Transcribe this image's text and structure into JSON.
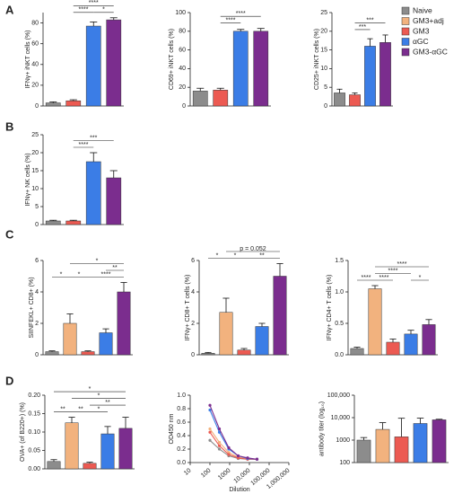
{
  "panels": [
    "A",
    "B",
    "C",
    "D"
  ],
  "legend": [
    {
      "name": "Naive",
      "color": "#8c8c8c"
    },
    {
      "name": "GM3+adj",
      "color": "#f2b27e"
    },
    {
      "name": "GM3",
      "color": "#ec5a52"
    },
    {
      "name": "αGC",
      "color": "#3b7de6"
    },
    {
      "name": "GM3-αGC",
      "color": "#7b2d8e"
    }
  ],
  "chart_data": [
    {
      "type": "bar",
      "ylabel": "IFNγ+ iNKT cells (%)",
      "colors": [
        "#8c8c8c",
        "#ec5a52",
        "#3b7de6",
        "#7b2d8e"
      ],
      "values": [
        3,
        5,
        77,
        83
      ],
      "errors": [
        1,
        1,
        4,
        2
      ],
      "ylim": [
        0,
        90
      ],
      "yticks": [
        0,
        20,
        40,
        60,
        80
      ],
      "annotations": [
        {
          "text": "****",
          "from": 1,
          "to": 2
        },
        {
          "text": "*",
          "from": 2,
          "to": 3
        },
        {
          "text": "****",
          "from": 1,
          "to": 3
        }
      ]
    },
    {
      "type": "bar",
      "ylabel": "CD69+ iNKT cells (%)",
      "colors": [
        "#8c8c8c",
        "#ec5a52",
        "#3b7de6",
        "#7b2d8e"
      ],
      "values": [
        16,
        17,
        80,
        80
      ],
      "errors": [
        3,
        2,
        2,
        3
      ],
      "ylim": [
        0,
        100
      ],
      "yticks": [
        0,
        20,
        40,
        60,
        80,
        100
      ],
      "annotations": [
        {
          "text": "****",
          "from": 1,
          "to": 2
        },
        {
          "text": "****",
          "from": 1,
          "to": 3
        }
      ]
    },
    {
      "type": "bar",
      "ylabel": "CD25+ iNKT cells (%)",
      "colors": [
        "#8c8c8c",
        "#ec5a52",
        "#3b7de6",
        "#7b2d8e"
      ],
      "values": [
        3.5,
        3,
        16,
        17
      ],
      "errors": [
        1,
        0.5,
        2,
        2
      ],
      "ylim": [
        0,
        25
      ],
      "yticks": [
        0,
        5,
        10,
        15,
        20,
        25
      ],
      "annotations": [
        {
          "text": "***",
          "from": 1,
          "to": 2
        },
        {
          "text": "***",
          "from": 1,
          "to": 3
        }
      ]
    },
    {
      "type": "bar",
      "ylabel": "IFNγ+ NK cells (%)",
      "colors": [
        "#8c8c8c",
        "#ec5a52",
        "#3b7de6",
        "#7b2d8e"
      ],
      "values": [
        1,
        1,
        17.5,
        13
      ],
      "errors": [
        0.2,
        0.2,
        2.5,
        2
      ],
      "ylim": [
        0,
        25
      ],
      "yticks": [
        0,
        5,
        10,
        15,
        20,
        25
      ],
      "annotations": [
        {
          "text": "****",
          "from": 1,
          "to": 2
        },
        {
          "text": "***",
          "from": 1,
          "to": 3
        }
      ]
    },
    {
      "type": "bar",
      "ylabel": "SIINFEKL+ CD8+ (%)",
      "colors": [
        "#8c8c8c",
        "#f2b27e",
        "#ec5a52",
        "#3b7de6",
        "#7b2d8e"
      ],
      "values": [
        0.2,
        2,
        0.2,
        1.4,
        4
      ],
      "errors": [
        0.05,
        0.6,
        0.05,
        0.25,
        0.6
      ],
      "ylim": [
        0,
        6
      ],
      "yticks": [
        0,
        2,
        4,
        6
      ],
      "annotations": [
        {
          "text": "*",
          "from": 0,
          "to": 1
        },
        {
          "text": "*",
          "from": 1,
          "to": 2
        },
        {
          "text": "****",
          "from": 2,
          "to": 4
        },
        {
          "text": "**",
          "from": 3,
          "to": 4
        },
        {
          "text": "*",
          "from": 1,
          "to": 4
        }
      ]
    },
    {
      "type": "bar",
      "ylabel": "IFNγ+ CD8+ T cells (%)",
      "colors": [
        "#8c8c8c",
        "#f2b27e",
        "#ec5a52",
        "#3b7de6",
        "#7b2d8e"
      ],
      "values": [
        0.1,
        2.7,
        0.3,
        1.8,
        5
      ],
      "errors": [
        0.05,
        0.9,
        0.1,
        0.2,
        0.8
      ],
      "ylim": [
        0,
        6
      ],
      "yticks": [
        0,
        2,
        4,
        6
      ],
      "annotations": [
        {
          "text": "*",
          "from": 0,
          "to": 1
        },
        {
          "text": "*",
          "from": 1,
          "to": 2
        },
        {
          "text": "**",
          "from": 2,
          "to": 4
        },
        {
          "text": "p = 0.052",
          "from": 1,
          "to": 4
        }
      ]
    },
    {
      "type": "bar",
      "ylabel": "IFNγ+ CD4+ T cells (%)",
      "colors": [
        "#8c8c8c",
        "#f2b27e",
        "#ec5a52",
        "#3b7de6",
        "#7b2d8e"
      ],
      "values": [
        0.1,
        1.05,
        0.2,
        0.33,
        0.48
      ],
      "errors": [
        0.02,
        0.05,
        0.05,
        0.06,
        0.08
      ],
      "ylim": [
        0,
        1.5
      ],
      "yticks": [
        {
          "value": 0,
          "label": "0.0"
        },
        0.5,
        {
          "value": 1,
          "label": "1.0"
        },
        1.5
      ],
      "annotations": [
        {
          "text": "****",
          "from": 0,
          "to": 1
        },
        {
          "text": "****",
          "from": 1,
          "to": 2
        },
        {
          "text": "*",
          "from": 3,
          "to": 4
        },
        {
          "text": "****",
          "from": 1,
          "to": 3
        },
        {
          "text": "****",
          "from": 1,
          "to": 4
        }
      ]
    },
    {
      "type": "bar",
      "ylabel": "OVA+ (of B220+) (%)",
      "colors": [
        "#8c8c8c",
        "#f2b27e",
        "#ec5a52",
        "#3b7de6",
        "#7b2d8e"
      ],
      "values": [
        0.02,
        0.125,
        0.015,
        0.095,
        0.11
      ],
      "errors": [
        0.005,
        0.015,
        0.003,
        0.02,
        0.03
      ],
      "ylim": [
        0,
        0.2
      ],
      "yticks": [
        {
          "value": 0,
          "label": "0.00"
        },
        {
          "value": 0.05,
          "label": "0.05"
        },
        {
          "value": 0.1,
          "label": "0.10"
        },
        {
          "value": 0.15,
          "label": "0.15"
        },
        {
          "value": 0.2,
          "label": "0.20"
        }
      ],
      "annotations": [
        {
          "text": "**",
          "from": 0,
          "to": 1
        },
        {
          "text": "**",
          "from": 1,
          "to": 2
        },
        {
          "text": "*",
          "from": 2,
          "to": 3
        },
        {
          "text": "**",
          "from": 2,
          "to": 4
        },
        {
          "text": "*",
          "from": 1,
          "to": 4
        },
        {
          "text": "*",
          "from": 0,
          "to": 4
        }
      ]
    },
    {
      "type": "line",
      "ylabel": "OD450 nm",
      "xlabel": "Dilution",
      "xlog": true,
      "x": [
        100,
        300,
        900,
        2700,
        8100,
        24300
      ],
      "series": [
        {
          "color": "#8c8c8c",
          "values": [
            0.33,
            0.2,
            0.1,
            0.06,
            0.05,
            0.05
          ]
        },
        {
          "color": "#f2b27e",
          "values": [
            0.5,
            0.3,
            0.15,
            0.08,
            0.06,
            0.05
          ]
        },
        {
          "color": "#ec5a52",
          "values": [
            0.45,
            0.25,
            0.12,
            0.07,
            0.05,
            0.05
          ]
        },
        {
          "color": "#3b7de6",
          "values": [
            0.78,
            0.45,
            0.2,
            0.1,
            0.06,
            0.05
          ]
        },
        {
          "color": "#7b2d8e",
          "values": [
            0.85,
            0.5,
            0.22,
            0.1,
            0.07,
            0.05
          ]
        }
      ],
      "xlim": [
        10,
        1000000
      ],
      "xticks": [
        10,
        100,
        1000,
        {
          "value": 10000,
          "label": "10,000"
        },
        {
          "value": 100000,
          "label": "100,000"
        },
        {
          "value": 1000000,
          "label": "1,000,000"
        }
      ],
      "ylim": [
        0,
        1
      ],
      "yticks": [
        {
          "value": 0,
          "label": "0.0"
        },
        0.2,
        0.4,
        0.6,
        0.8,
        {
          "value": 1,
          "label": "1.0"
        }
      ]
    },
    {
      "type": "bar",
      "ylabel": "antibody titer (log₁₀)",
      "ylog": true,
      "colors": [
        "#8c8c8c",
        "#f2b27e",
        "#ec5a52",
        "#3b7de6",
        "#7b2d8e"
      ],
      "values": [
        1000,
        3000,
        1400,
        5500,
        8000
      ],
      "errors": [
        300,
        3000,
        8000,
        4000,
        500
      ],
      "ylim": [
        100,
        100000
      ],
      "yticks": [
        100,
        1000,
        {
          "value": 10000,
          "label": "10,000"
        },
        {
          "value": 100000,
          "label": "100,000"
        }
      ]
    }
  ]
}
